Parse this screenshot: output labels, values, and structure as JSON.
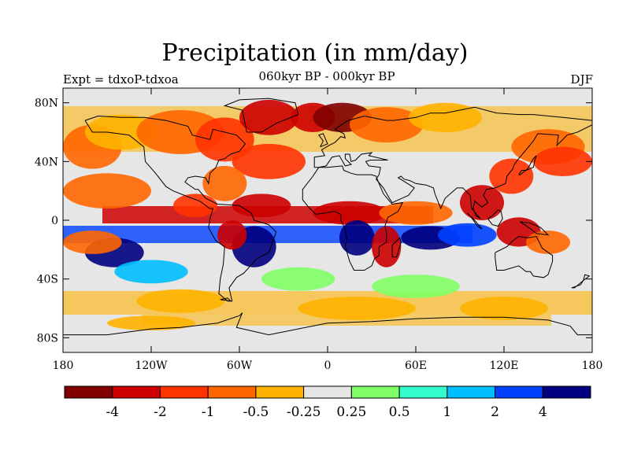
{
  "title": "Precipitation (in mm/day)",
  "subtitle": "060kyr BP - 000kyr BP",
  "left_label": "Expt = tdxoP-tdxoa",
  "right_label": "DJF",
  "map": {
    "background_color": "#e6e6e6",
    "lon_range": [
      -180,
      180
    ],
    "lat_range": [
      -90,
      90
    ],
    "x_ticks": [
      {
        "lon": -180,
        "label": "180"
      },
      {
        "lon": -120,
        "label": "120W"
      },
      {
        "lon": -60,
        "label": "60W"
      },
      {
        "lon": 0,
        "label": "0"
      },
      {
        "lon": 60,
        "label": "60E"
      },
      {
        "lon": 120,
        "label": "120E"
      },
      {
        "lon": 180,
        "label": "180"
      }
    ],
    "y_ticks": [
      {
        "lat": 80,
        "label": "80N"
      },
      {
        "lat": 40,
        "label": "40N"
      },
      {
        "lat": 0,
        "label": "0"
      },
      {
        "lat": -40,
        "label": "40S"
      },
      {
        "lat": -80,
        "label": "80S"
      }
    ]
  },
  "colorbar": {
    "colors": [
      "#800000",
      "#cc0000",
      "#ff3300",
      "#ff6600",
      "#ffb300",
      "#e6e6e6",
      "#80ff66",
      "#33ffcc",
      "#00bfff",
      "#0040ff",
      "#000080"
    ],
    "labels": [
      "-4",
      "-2",
      "-1",
      "-0.5",
      "-0.25",
      "0.25",
      "0.5",
      "1",
      "2",
      "4"
    ]
  },
  "patches": [
    {
      "lon": -150,
      "lat": 20,
      "rx": 30,
      "ry": 12,
      "cls": 3
    },
    {
      "lon": -160,
      "lat": 50,
      "rx": 20,
      "ry": 15,
      "cls": 3
    },
    {
      "lon": -140,
      "lat": 60,
      "rx": 25,
      "ry": 12,
      "cls": 4
    },
    {
      "lon": -100,
      "lat": 60,
      "rx": 30,
      "ry": 15,
      "cls": 3
    },
    {
      "lon": -70,
      "lat": 55,
      "rx": 20,
      "ry": 15,
      "cls": 2
    },
    {
      "lon": -40,
      "lat": 70,
      "rx": 20,
      "ry": 12,
      "cls": 1
    },
    {
      "lon": -40,
      "lat": 40,
      "rx": 25,
      "ry": 12,
      "cls": 2
    },
    {
      "lon": -10,
      "lat": 70,
      "rx": 15,
      "ry": 10,
      "cls": 1
    },
    {
      "lon": 10,
      "lat": 70,
      "rx": 20,
      "ry": 10,
      "cls": 0
    },
    {
      "lon": 40,
      "lat": 65,
      "rx": 25,
      "ry": 12,
      "cls": 3
    },
    {
      "lon": 80,
      "lat": 70,
      "rx": 25,
      "ry": 10,
      "cls": 4
    },
    {
      "lon": 150,
      "lat": 50,
      "rx": 25,
      "ry": 12,
      "cls": 3
    },
    {
      "lon": 160,
      "lat": 40,
      "rx": 20,
      "ry": 10,
      "cls": 2
    },
    {
      "lon": 125,
      "lat": 30,
      "rx": 15,
      "ry": 12,
      "cls": 2
    },
    {
      "lon": 105,
      "lat": 12,
      "rx": 15,
      "ry": 12,
      "cls": 1
    },
    {
      "lon": -70,
      "lat": 25,
      "rx": 15,
      "ry": 12,
      "cls": 3
    },
    {
      "lon": -90,
      "lat": 10,
      "rx": 15,
      "ry": 8,
      "cls": 2
    },
    {
      "lon": -45,
      "lat": 10,
      "rx": 20,
      "ry": 8,
      "cls": 1
    },
    {
      "lon": 15,
      "lat": 5,
      "rx": 25,
      "ry": 8,
      "cls": 1
    },
    {
      "lon": 60,
      "lat": 5,
      "rx": 25,
      "ry": 8,
      "cls": 3
    },
    {
      "lon": -50,
      "lat": -18,
      "rx": 15,
      "ry": 14,
      "cls": 10
    },
    {
      "lon": -65,
      "lat": -10,
      "rx": 10,
      "ry": 10,
      "cls": 1
    },
    {
      "lon": 20,
      "lat": -12,
      "rx": 12,
      "ry": 12,
      "cls": 10
    },
    {
      "lon": 40,
      "lat": -18,
      "rx": 10,
      "ry": 14,
      "cls": 1
    },
    {
      "lon": 70,
      "lat": -12,
      "rx": 20,
      "ry": 8,
      "cls": 10
    },
    {
      "lon": 95,
      "lat": -10,
      "rx": 20,
      "ry": 8,
      "cls": 9
    },
    {
      "lon": 130,
      "lat": -8,
      "rx": 15,
      "ry": 10,
      "cls": 1
    },
    {
      "lon": 150,
      "lat": -15,
      "rx": 15,
      "ry": 8,
      "cls": 3
    },
    {
      "lon": -145,
      "lat": -22,
      "rx": 20,
      "ry": 10,
      "cls": 10
    },
    {
      "lon": -160,
      "lat": -15,
      "rx": 20,
      "ry": 8,
      "cls": 3
    },
    {
      "lon": -120,
      "lat": -35,
      "rx": 25,
      "ry": 8,
      "cls": 8
    },
    {
      "lon": -20,
      "lat": -40,
      "rx": 25,
      "ry": 8,
      "cls": 6
    },
    {
      "lon": 60,
      "lat": -45,
      "rx": 30,
      "ry": 8,
      "cls": 6
    },
    {
      "lon": -100,
      "lat": -55,
      "rx": 30,
      "ry": 8,
      "cls": 4
    },
    {
      "lon": 20,
      "lat": -60,
      "rx": 40,
      "ry": 8,
      "cls": 4
    },
    {
      "lon": 120,
      "lat": -60,
      "rx": 30,
      "ry": 8,
      "cls": 4
    },
    {
      "lon": -120,
      "lat": -70,
      "rx": 30,
      "ry": 5,
      "cls": 4
    }
  ]
}
